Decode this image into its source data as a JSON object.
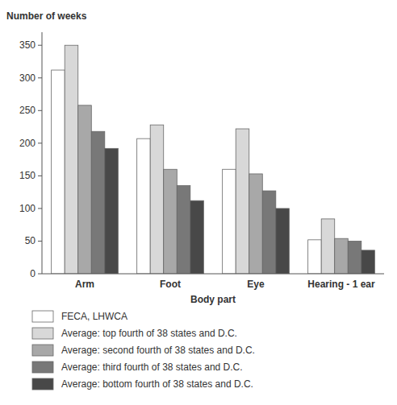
{
  "chart_data": {
    "type": "bar",
    "ylabel": "Number of weeks",
    "xlabel": "Body part",
    "categories": [
      "Arm",
      "Foot",
      "Eye",
      "Hearing - 1 ear"
    ],
    "series": [
      {
        "name": "FECA, LHWCA",
        "color": "#ffffff",
        "values": [
          312,
          207,
          160,
          52
        ]
      },
      {
        "name": "Average:  top fourth of 38 states and D.C.",
        "color": "#d8d8d8",
        "values": [
          350,
          228,
          222,
          84
        ]
      },
      {
        "name": "Average:  second fourth of 38 states and D.C.",
        "color": "#a8a8a8",
        "values": [
          258,
          160,
          153,
          54
        ]
      },
      {
        "name": "Average:  third fourth of 38 states and D.C.",
        "color": "#787878",
        "values": [
          218,
          135,
          127,
          50
        ]
      },
      {
        "name": "Average:  bottom fourth of 38 states and D.C.",
        "color": "#484848",
        "values": [
          192,
          112,
          100,
          36
        ]
      }
    ],
    "ylim": [
      0,
      370
    ],
    "yticks": [
      0,
      50,
      100,
      150,
      200,
      250,
      300,
      350
    ],
    "grid": false,
    "legend": "bottom"
  }
}
